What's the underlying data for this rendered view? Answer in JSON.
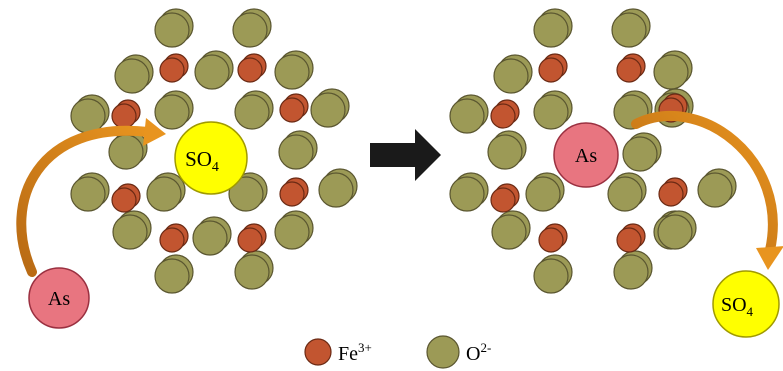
{
  "colors": {
    "oxygen_fill": "#9c9a56",
    "oxygen_stroke": "#5a5630",
    "iron_fill": "#c25530",
    "iron_stroke": "#6b2a14",
    "arsenic_fill": "#e87580",
    "arsenic_stroke": "#9a3040",
    "sulfate_fill": "#ffff00",
    "sulfate_stroke": "#a09a00",
    "curve_arrow": "#d9871f",
    "reaction_arrow": "#1a1a1a"
  },
  "panels": [
    {
      "id": "before",
      "arsenic": {
        "label": "As"
      },
      "sulfate": {
        "label": "SO",
        "subscript": "4"
      }
    },
    {
      "id": "after",
      "arsenic": {
        "label": "As"
      },
      "sulfate": {
        "label": "SO",
        "subscript": "4"
      }
    }
  ],
  "legend": [
    {
      "symbol": "iron-ion",
      "label": "Fe",
      "superscript": "3+"
    },
    {
      "symbol": "oxide-ion",
      "label": "O",
      "superscript": "2-"
    }
  ]
}
